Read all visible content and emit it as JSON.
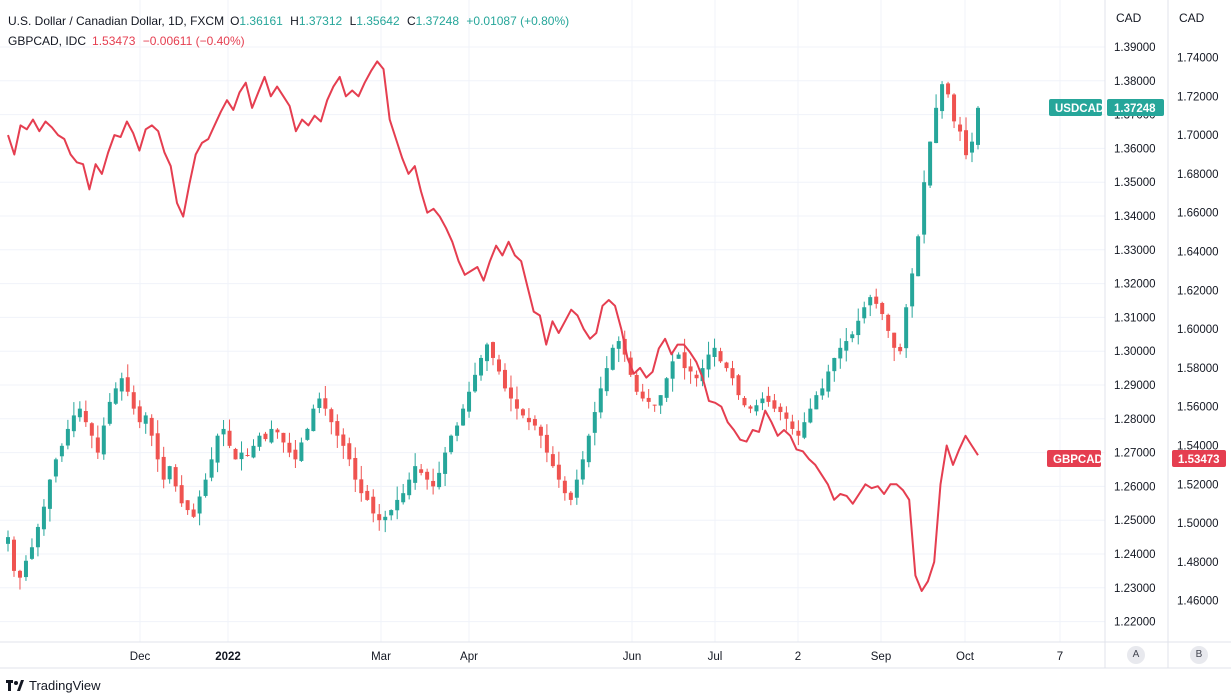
{
  "legend": {
    "usdcad": {
      "name": "U.S. Dollar / Canadian Dollar, 1D, FXCM",
      "o_label": "O",
      "o": "1.36161",
      "h_label": "H",
      "h": "1.37312",
      "l_label": "L",
      "l": "1.35642",
      "c_label": "C",
      "c": "1.37248",
      "change": "+0.01087 (+0.80%)"
    },
    "gbpcad": {
      "name": "GBPCAD, IDC",
      "value": "1.53473",
      "change": "−0.00611 (−0.40%)"
    }
  },
  "axes": {
    "a_currency": "CAD",
    "b_currency": "CAD",
    "a_button": "A",
    "b_button": "B"
  },
  "tags": {
    "usdcad_label": "USDCAD",
    "usdcad_value": "1.37248",
    "gbpcad_label": "GBPCAD",
    "gbpcad_value": "1.53473"
  },
  "brand": {
    "name": "TradingView"
  },
  "colors": {
    "up": "#26a69a",
    "down": "#ef5350",
    "line": "#e53e50",
    "grid": "#f0f3fa"
  },
  "chart_data": {
    "type": "line",
    "x_ticks": [
      "Dec",
      "2022",
      "Mar",
      "Apr",
      "Jun",
      "Jul",
      "2",
      "Sep",
      "Oct",
      "7"
    ],
    "y_left_ticks": [
      "1.39000",
      "1.38000",
      "1.37000",
      "1.36000",
      "1.35000",
      "1.34000",
      "1.33000",
      "1.32000",
      "1.31000",
      "1.30000",
      "1.29000",
      "1.28000",
      "1.27000",
      "1.26000",
      "1.25000",
      "1.24000",
      "1.23000",
      "1.22000"
    ],
    "y_left_range": [
      1.215,
      1.395
    ],
    "y_right_ticks": [
      "1.74000",
      "1.72000",
      "1.70000",
      "1.68000",
      "1.66000",
      "1.64000",
      "1.62000",
      "1.60000",
      "1.58000",
      "1.56000",
      "1.54000",
      "1.52000",
      "1.50000",
      "1.48000",
      "1.46000"
    ],
    "y_right_range": [
      1.448,
      1.754
    ],
    "grid": true,
    "series": [
      {
        "name": "USDCAD",
        "style": "candles",
        "axis": "left",
        "close_path": [
          1.245,
          1.235,
          1.233,
          1.238,
          1.242,
          1.248,
          1.254,
          1.262,
          1.268,
          1.272,
          1.277,
          1.281,
          1.283,
          1.279,
          1.275,
          1.27,
          1.278,
          1.285,
          1.289,
          1.292,
          1.288,
          1.283,
          1.279,
          1.281,
          1.275,
          1.268,
          1.262,
          1.266,
          1.26,
          1.255,
          1.253,
          1.251,
          1.257,
          1.262,
          1.268,
          1.275,
          1.277,
          1.272,
          1.268,
          1.27,
          1.269,
          1.272,
          1.275,
          1.274,
          1.277,
          1.276,
          1.273,
          1.27,
          1.268,
          1.273,
          1.277,
          1.283,
          1.286,
          1.283,
          1.279,
          1.275,
          1.272,
          1.268,
          1.262,
          1.258,
          1.256,
          1.252,
          1.25,
          1.251,
          1.253,
          1.256,
          1.258,
          1.262,
          1.266,
          1.264,
          1.262,
          1.26,
          1.264,
          1.27,
          1.275,
          1.278,
          1.283,
          1.288,
          1.293,
          1.298,
          1.302,
          1.298,
          1.294,
          1.289,
          1.286,
          1.283,
          1.281,
          1.279,
          1.278,
          1.275,
          1.27,
          1.266,
          1.262,
          1.258,
          1.256,
          1.262,
          1.268,
          1.275,
          1.282,
          1.289,
          1.295,
          1.301,
          1.303,
          1.299,
          1.293,
          1.288,
          1.286,
          1.285,
          1.284,
          1.287,
          1.292,
          1.297,
          1.299,
          1.295,
          1.294,
          1.292,
          1.295,
          1.299,
          1.301,
          1.297,
          1.295,
          1.292,
          1.287,
          1.284,
          1.283,
          1.284,
          1.286,
          1.285,
          1.283,
          1.282,
          1.28,
          1.277,
          1.275,
          1.279,
          1.283,
          1.287,
          1.289,
          1.294,
          1.298,
          1.301,
          1.303,
          1.305,
          1.309,
          1.313,
          1.316,
          1.314,
          1.311,
          1.306,
          1.301,
          1.3,
          1.313,
          1.323,
          1.334,
          1.35,
          1.362,
          1.372,
          1.379,
          1.376,
          1.368,
          1.365,
          1.358,
          1.362,
          1.372
        ],
        "last": 1.37248
      },
      {
        "name": "GBPCAD",
        "style": "line",
        "axis": "right",
        "path": [
          1.7,
          1.69,
          1.705,
          1.703,
          1.708,
          1.702,
          1.707,
          1.704,
          1.7,
          1.698,
          1.69,
          1.686,
          1.685,
          1.672,
          1.685,
          1.68,
          1.691,
          1.7,
          1.699,
          1.707,
          1.701,
          1.692,
          1.703,
          1.705,
          1.702,
          1.691,
          1.684,
          1.665,
          1.658,
          1.675,
          1.69,
          1.696,
          1.698,
          1.705,
          1.712,
          1.718,
          1.713,
          1.722,
          1.727,
          1.714,
          1.722,
          1.73,
          1.72,
          1.725,
          1.72,
          1.715,
          1.702,
          1.708,
          1.705,
          1.71,
          1.707,
          1.718,
          1.725,
          1.73,
          1.72,
          1.723,
          1.72,
          1.727,
          1.733,
          1.738,
          1.734,
          1.708,
          1.698,
          1.688,
          1.68,
          1.684,
          1.671,
          1.66,
          1.662,
          1.658,
          1.652,
          1.645,
          1.635,
          1.628,
          1.63,
          1.632,
          1.625,
          1.635,
          1.643,
          1.638,
          1.645,
          1.638,
          1.635,
          1.622,
          1.609,
          1.607,
          1.592,
          1.604,
          1.598,
          1.604,
          1.61,
          1.607,
          1.6,
          1.595,
          1.598,
          1.612,
          1.615,
          1.612,
          1.6,
          1.585,
          1.577,
          1.58,
          1.575,
          1.578,
          1.59,
          1.595,
          1.587,
          1.592,
          1.592,
          1.588,
          1.583,
          1.575,
          1.563,
          1.562,
          1.56,
          1.552,
          1.548,
          1.543,
          1.542,
          1.548,
          1.547,
          1.558,
          1.552,
          1.545,
          1.548,
          1.545,
          1.538,
          1.537,
          1.533,
          1.53,
          1.525,
          1.52,
          1.512,
          1.515,
          1.514,
          1.51,
          1.515,
          1.52,
          1.518,
          1.519,
          1.515,
          1.52,
          1.52,
          1.517,
          1.512,
          1.473,
          1.465,
          1.47,
          1.48,
          1.52,
          1.54,
          1.53,
          1.538,
          1.545,
          1.54,
          1.535
        ],
        "last": 1.53473
      }
    ]
  }
}
